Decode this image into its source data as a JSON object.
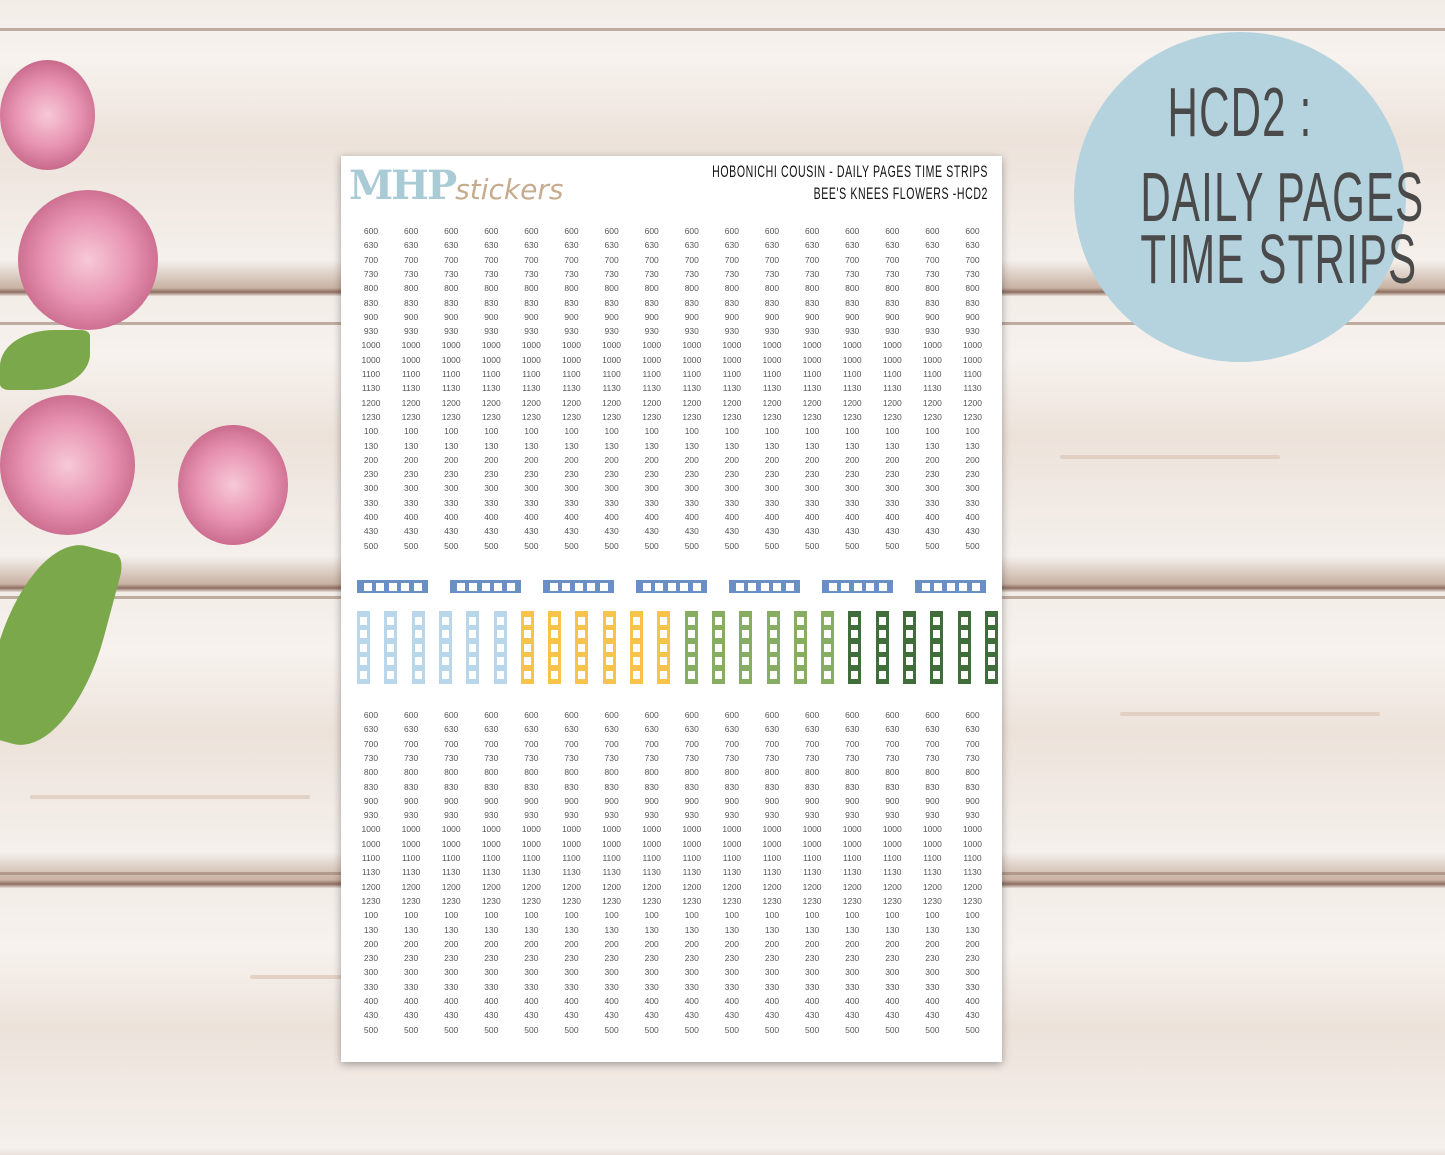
{
  "sheet": {
    "logo_main": "MHP",
    "logo_script": "stickers",
    "title_line1": "HOBONICHI COUSIN -  DAILY PAGES TIME STRIPS",
    "title_line2": "BEE'S KNEES FLOWERS -HCD2",
    "times": [
      "600",
      "630",
      "700",
      "730",
      "800",
      "830",
      "900",
      "930",
      "1000",
      "1000",
      "1100",
      "1130",
      "1200",
      "1230",
      "100",
      "130",
      "200",
      "230",
      "300",
      "330",
      "400",
      "430",
      "500"
    ],
    "columns_per_block": 16,
    "horizontal_strip_color": "#6a8fc4",
    "vertical_strip_colors": [
      "#b9d7ea",
      "#f8c34a",
      "#86ad62",
      "#3f6e3a"
    ]
  },
  "badge": {
    "line1": "HCD2 :",
    "line2": "DAILY PAGES",
    "line3": "TIME STRIPS",
    "color": "#b5d3de"
  }
}
